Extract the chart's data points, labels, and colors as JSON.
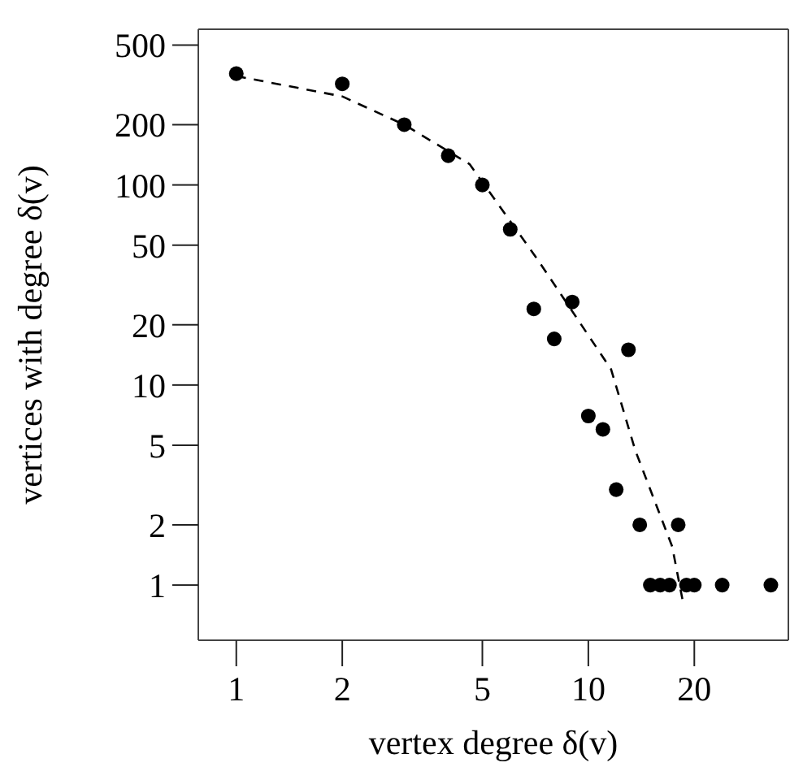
{
  "chart_data": {
    "type": "scatter",
    "xlabel": "vertex degree δ(v)",
    "ylabel": "vertices with degree δ(v)",
    "log": "xy",
    "marker": "circle",
    "xlim": [
      0.78,
      37
    ],
    "ylim": [
      0.53,
      600
    ],
    "xticks": [
      1,
      2,
      5,
      10,
      20
    ],
    "yticks": [
      1,
      2,
      5,
      10,
      20,
      50,
      100,
      200,
      500
    ],
    "series": [
      {
        "type": "scatter",
        "color": "#000000",
        "x": [
          1,
          2,
          3,
          4,
          5,
          6,
          7,
          8,
          9,
          10,
          11,
          12,
          13,
          14,
          18,
          15,
          16,
          17,
          19,
          20,
          24,
          33
        ],
        "values": [
          360,
          320,
          200,
          140,
          100,
          60,
          24,
          17,
          26,
          7,
          6,
          3,
          15,
          2,
          2,
          1,
          1,
          1,
          1,
          1,
          1,
          1
        ]
      },
      {
        "type": "line",
        "color": "#000000",
        "line_style": "dashed",
        "marker": "none",
        "x": [
          1,
          2,
          3,
          4.6,
          7.2,
          11.6,
          13.6,
          17.3,
          18.6
        ],
        "values": [
          350,
          277,
          200,
          127,
          42,
          12,
          4.7,
          1.56,
          0.81
        ]
      }
    ]
  }
}
